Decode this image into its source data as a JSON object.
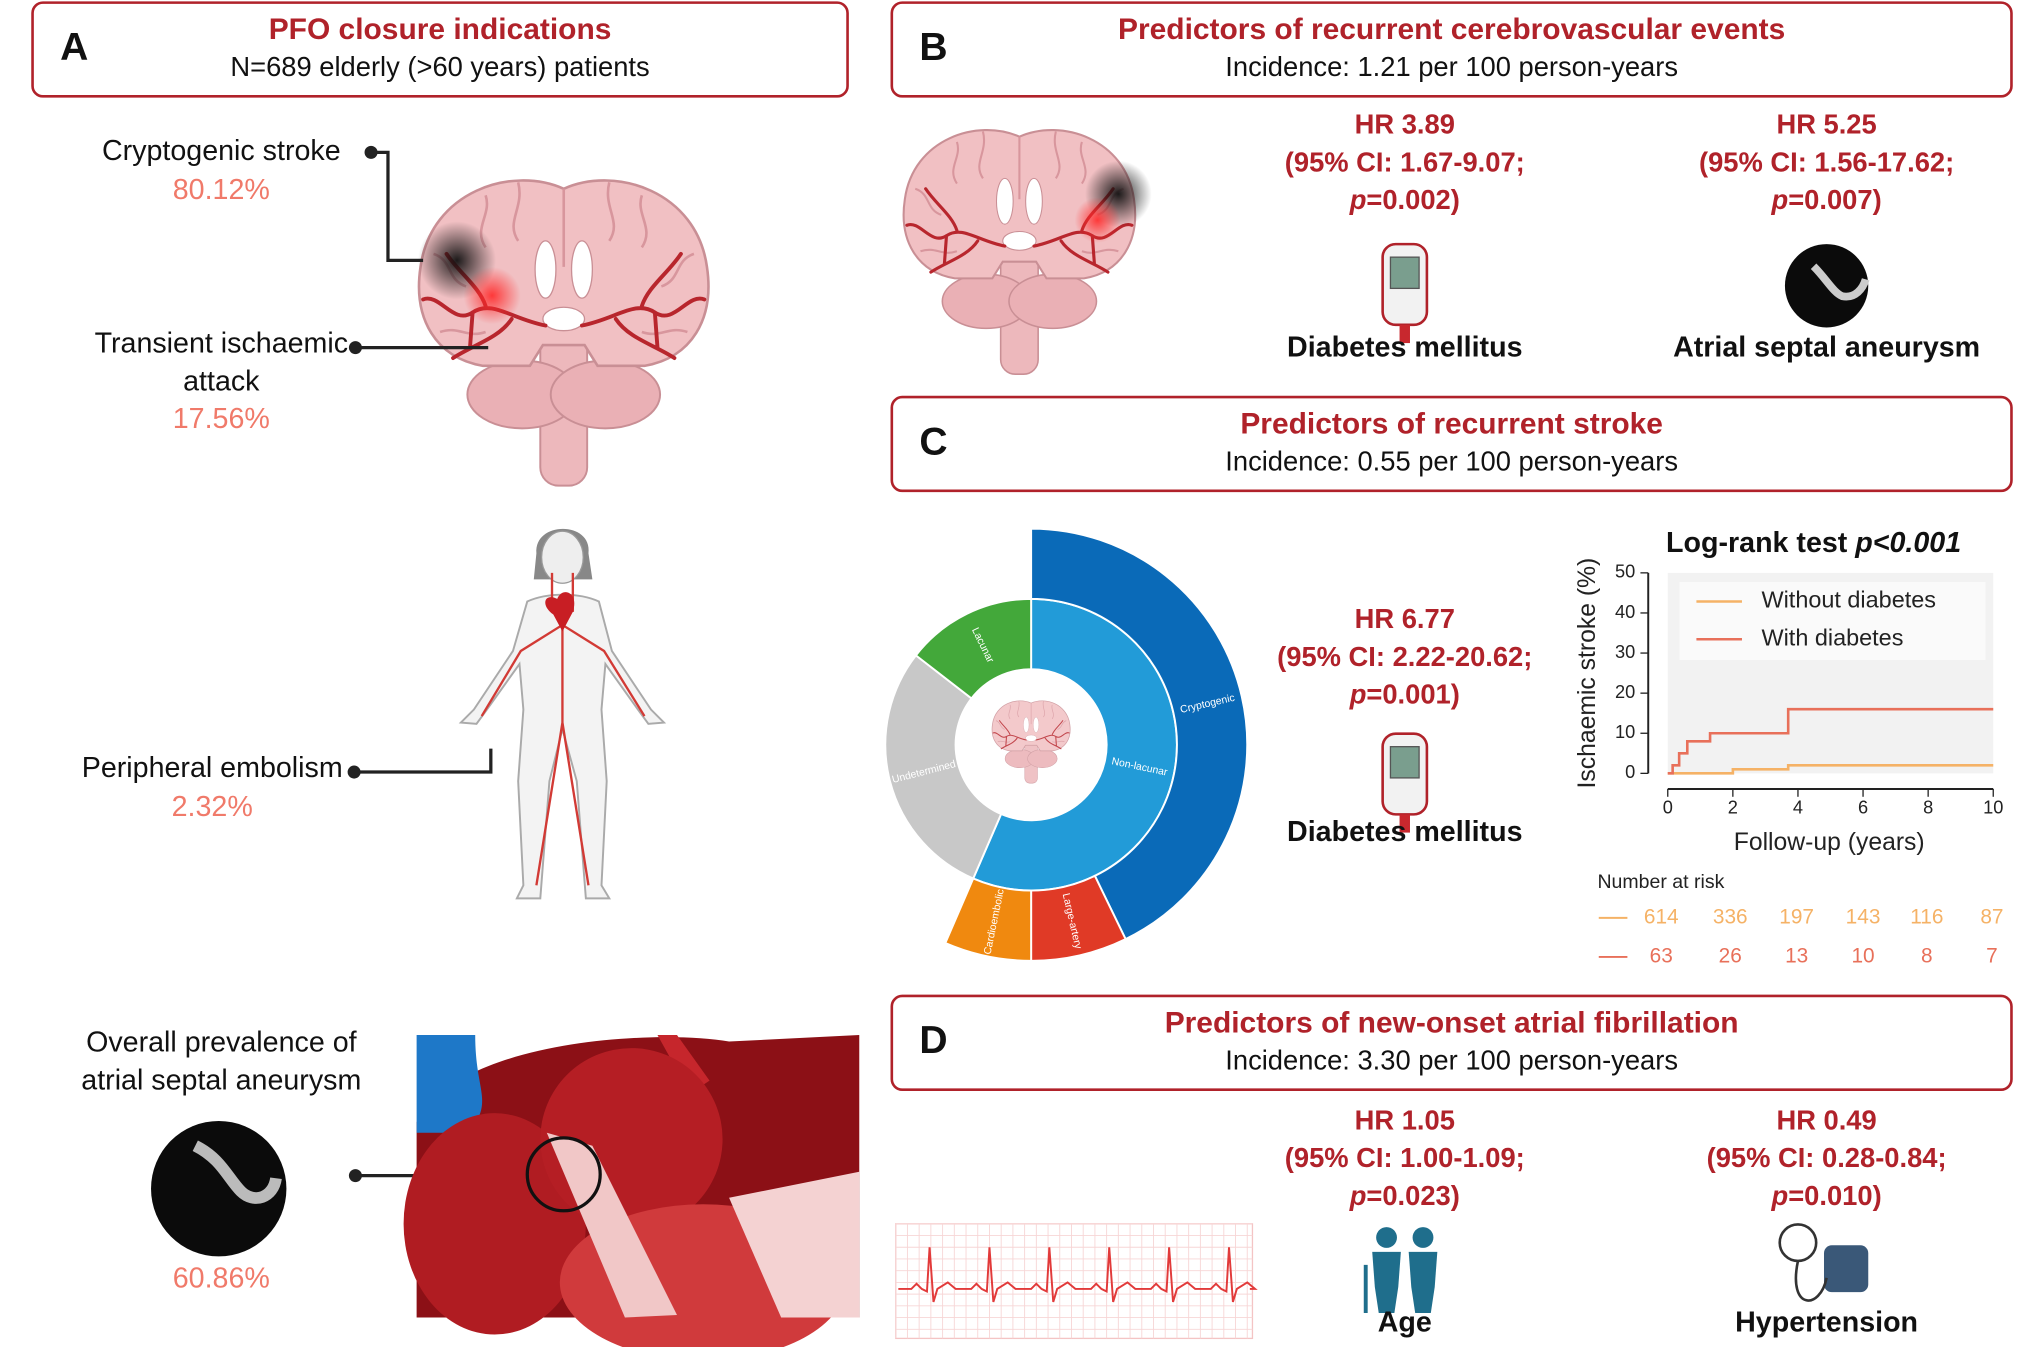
{
  "panels": [
    {
      "letter": "A",
      "title": "PFO closure indications",
      "subtitle": "N=689 elderly (>60 years) patients",
      "indications": [
        {
          "label": [
            "Cryptogenic stroke"
          ],
          "value": "80.12%"
        },
        {
          "label": [
            "Transient ischaemic",
            "attack"
          ],
          "value": "17.56%"
        },
        {
          "label": [
            "Peripheral embolism"
          ],
          "value": "2.32%"
        },
        {
          "label": [
            "Overall prevalence of",
            "atrial septal aneurysm"
          ],
          "value": "60.86%"
        }
      ]
    },
    {
      "letter": "B",
      "title": "Predictors of recurrent cerebrovascular events",
      "subtitle": "Incidence: 1.21 per 100 person-years",
      "predictors": [
        {
          "hr": "HR 3.89",
          "ci": "(95% CI: 1.67-9.07;",
          "p": "p=0.002)",
          "name": "Diabetes mellitus"
        },
        {
          "hr": "HR 5.25",
          "ci": "(95% CI: 1.56-17.62;",
          "p": "p=0.007)",
          "name": "Atrial septal aneurysm"
        }
      ]
    },
    {
      "letter": "C",
      "title": "Predictors of recurrent stroke",
      "subtitle": "Incidence: 0.55 per 100 person-years",
      "predictors": [
        {
          "hr": "HR 6.77",
          "ci": "(95% CI: 2.22-20.62;",
          "p": "p=0.001)",
          "name": "Diabetes mellitus"
        }
      ]
    },
    {
      "letter": "D",
      "title": "Predictors of new-onset atrial fibrillation",
      "subtitle": "Incidence: 3.30 per 100 person-years",
      "predictors": [
        {
          "hr": "HR 1.05",
          "ci": "(95% CI: 1.00-1.09;",
          "p": "p=0.023)",
          "name": "Age"
        },
        {
          "hr": "HR 0.49",
          "ci": "(95% CI: 0.28-0.84;",
          "p": "p=0.010)",
          "name": "Hypertension"
        }
      ]
    }
  ],
  "chart_data": [
    {
      "type": "sunburst",
      "inner": {
        "categories": [
          "Non-lacunar",
          "Undetermined",
          "Lacunar"
        ],
        "values": [
          56.5,
          29,
          14.5
        ],
        "colors": [
          "#229bd8",
          "#c8c8c8",
          "#43a83a"
        ]
      },
      "outer": {
        "categories": [
          "Cryptogenic",
          "Large-artery",
          "Cardioembolic"
        ],
        "values": [
          42.8,
          7.2,
          6.5
        ],
        "colors": [
          "#0a6ab8",
          "#e03a26",
          "#f0890f"
        ]
      }
    },
    {
      "type": "line",
      "title": "Log-rank test",
      "title_emphasis": "p<0.001",
      "xlabel": "Follow-up (years)",
      "ylabel": "Ischaemic stroke (%)",
      "xlim": [
        0,
        10
      ],
      "xticks": [
        0,
        2,
        4,
        6,
        8,
        10
      ],
      "ylim": [
        0,
        50
      ],
      "yticks": [
        0,
        10,
        20,
        30,
        40,
        50
      ],
      "series": [
        {
          "name": "Without diabetes",
          "color": "#f5b266",
          "x": [
            0,
            2,
            2,
            3.7,
            3.7,
            10
          ],
          "values": [
            0,
            0,
            1,
            1,
            2,
            2
          ]
        },
        {
          "name": "With diabetes",
          "color": "#e8705a",
          "x": [
            0,
            0.15,
            0.15,
            0.35,
            0.35,
            0.6,
            0.6,
            1.3,
            1.3,
            3.7,
            3.7,
            10
          ],
          "values": [
            0,
            0,
            2,
            2,
            5,
            5,
            8,
            8,
            10,
            10,
            16,
            16
          ]
        }
      ],
      "risk_table": {
        "title": "Number at risk",
        "rows": [
          [
            614,
            336,
            197,
            143,
            116,
            87
          ],
          [
            63,
            26,
            13,
            10,
            8,
            7
          ]
        ]
      }
    }
  ]
}
